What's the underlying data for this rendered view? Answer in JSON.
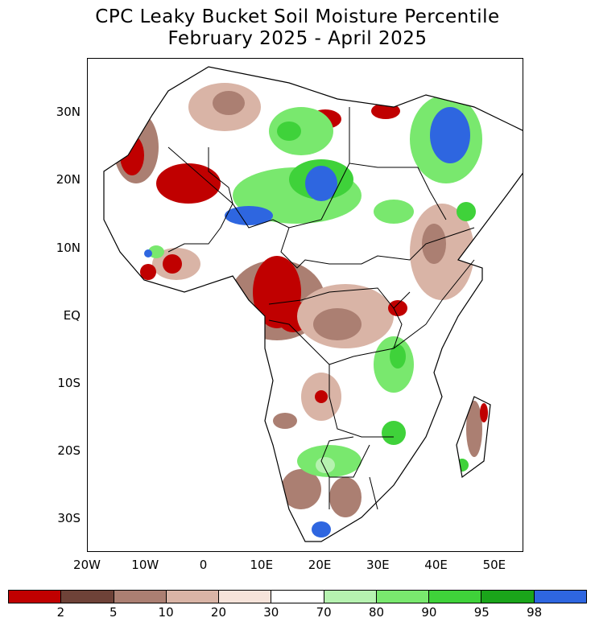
{
  "title": {
    "line1": "CPC Leaky Bucket Soil Moisture Percentile",
    "line2": "February 2025 - April 2025"
  },
  "map": {
    "region": "Africa",
    "lon_range": [
      -20,
      55
    ],
    "lat_range": [
      -35,
      38
    ],
    "lat_labels": [
      "30N",
      "20N",
      "10N",
      "EQ",
      "10S",
      "20S",
      "30S"
    ],
    "lat_values": [
      30,
      20,
      10,
      0,
      -10,
      -20,
      -30
    ],
    "lon_labels": [
      "20W",
      "10W",
      "0",
      "10E",
      "20E",
      "30E",
      "40E",
      "50E"
    ],
    "lon_values": [
      -20,
      -10,
      0,
      10,
      20,
      30,
      40,
      50
    ]
  },
  "colorbar": {
    "colors": [
      "#c00000",
      "#6e4238",
      "#ab7f72",
      "#d9b4a6",
      "#f6e3da",
      "#ffffff",
      "#b6f2b0",
      "#79e86e",
      "#3fd23a",
      "#1aa51a",
      "#2e66e0"
    ],
    "labels": [
      "2",
      "5",
      "10",
      "20",
      "30",
      "70",
      "80",
      "90",
      "95",
      "98"
    ]
  }
}
